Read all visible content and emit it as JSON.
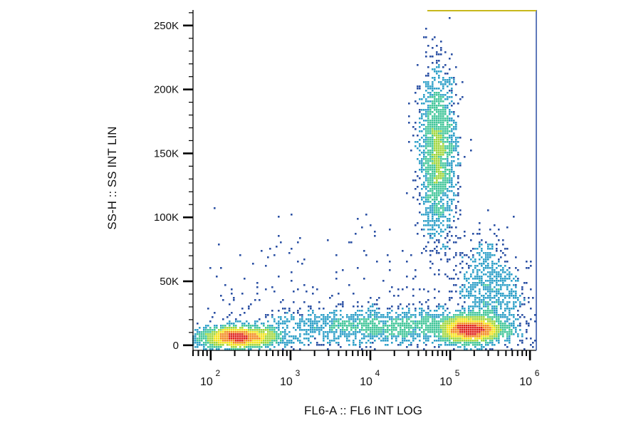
{
  "chart_data": {
    "type": "scatter",
    "subtype": "flow-cytometry density dot plot",
    "title": "",
    "xlabel": "FL6-A :: FL6 INT LOG",
    "ylabel": "SS-H :: SS INT LIN",
    "x_scale": "log",
    "y_scale": "linear",
    "xlim": [
      60,
      1200000
    ],
    "ylim": [
      -4000,
      262144
    ],
    "x_ticks": [
      {
        "value": 100,
        "base": "10",
        "exp": "2"
      },
      {
        "value": 1000,
        "base": "10",
        "exp": "3"
      },
      {
        "value": 10000,
        "base": "10",
        "exp": "4"
      },
      {
        "value": 100000,
        "base": "10",
        "exp": "5"
      },
      {
        "value": 1000000,
        "base": "10",
        "exp": "6"
      }
    ],
    "y_ticks": [
      {
        "value": 0,
        "label": "0"
      },
      {
        "value": 50000,
        "label": "50K"
      },
      {
        "value": 100000,
        "label": "100K"
      },
      {
        "value": 150000,
        "label": "150K"
      },
      {
        "value": 200000,
        "label": "200K"
      },
      {
        "value": 250000,
        "label": "250K"
      }
    ],
    "grid": false,
    "legend": false,
    "colormap": [
      "#2a4fa3",
      "#2fa0c8",
      "#43c69a",
      "#9fd63c",
      "#f3e21c",
      "#f28a1e",
      "#e0221a"
    ],
    "populations": [
      {
        "x_center": 220,
        "y_center": 6000,
        "x_spread_decades": 0.25,
        "y_sd": 4000,
        "density": "high"
      },
      {
        "x_center": 180000,
        "y_center": 12000,
        "x_spread_decades": 0.2,
        "y_sd": 5000,
        "density": "high"
      },
      {
        "x_center": 70000,
        "y_center": 150000,
        "x_spread_decades": 0.12,
        "y_sd": 32000,
        "density": "high"
      },
      {
        "x_center": 15000,
        "y_center": 15000,
        "x_spread_decades": 0.8,
        "y_sd": 7000,
        "density": "medium"
      },
      {
        "x_center": 300000,
        "y_center": 45000,
        "x_spread_decades": 0.2,
        "y_sd": 20000,
        "density": "low"
      }
    ]
  }
}
